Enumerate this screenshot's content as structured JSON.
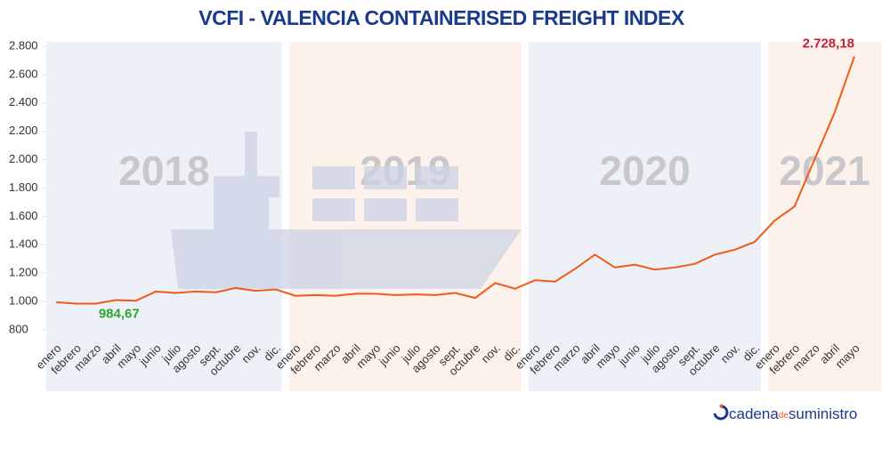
{
  "chart_data": {
    "type": "line",
    "title": "VCFI - VALENCIA CONTAINERISED FREIGHT INDEX",
    "periods": [
      "2018",
      "2019",
      "2020",
      "2021"
    ],
    "period_colors": [
      "#eef0f7",
      "#fdf2eb",
      "#eef0f7",
      "#fdf2eb"
    ],
    "categories": [
      "enero",
      "febrero",
      "marzo",
      "abril",
      "mayo",
      "junio",
      "julio",
      "agosto",
      "sept.",
      "octubre",
      "nov.",
      "dic.",
      "enero",
      "febrero",
      "marzo",
      "abril",
      "mayo",
      "junio",
      "julio",
      "agosto",
      "sept.",
      "octubre",
      "nov.",
      "dic.",
      "enero",
      "febrero",
      "marzo",
      "abril",
      "mayo",
      "junio",
      "julio",
      "agosto",
      "sept.",
      "octubre",
      "nov.",
      "dic.",
      "enero",
      "febrero",
      "marzo",
      "abril",
      "mayo"
    ],
    "values": [
      995,
      985,
      984.67,
      1010,
      1005,
      1070,
      1060,
      1070,
      1065,
      1095,
      1075,
      1085,
      1040,
      1045,
      1040,
      1055,
      1055,
      1045,
      1050,
      1045,
      1060,
      1025,
      1130,
      1090,
      1150,
      1140,
      1230,
      1330,
      1240,
      1260,
      1225,
      1240,
      1265,
      1330,
      1365,
      1420,
      1570,
      1670,
      2000,
      2330,
      2728.18
    ],
    "value_labels": [
      null,
      null,
      "984,67",
      null,
      null,
      null,
      null,
      null,
      null,
      null,
      null,
      null,
      null,
      null,
      null,
      null,
      null,
      null,
      null,
      null,
      null,
      null,
      null,
      null,
      null,
      null,
      null,
      null,
      null,
      null,
      null,
      null,
      null,
      null,
      null,
      null,
      null,
      null,
      null,
      null,
      "2.728,18"
    ],
    "color": "#f05a1a",
    "ylim": [
      800,
      2800
    ],
    "yticks": [
      800,
      {
        "value": 1000,
        "label": "1.000"
      },
      {
        "value": 1200,
        "label": "1.200"
      },
      {
        "value": 1400,
        "label": "1.400"
      },
      {
        "value": 1600,
        "label": "1.600"
      },
      {
        "value": 1800,
        "label": "1.800"
      },
      {
        "value": 2000,
        "label": "2.000"
      },
      {
        "value": 2200,
        "label": "2.200"
      },
      {
        "value": 2400,
        "label": "2.400"
      },
      {
        "value": 2600,
        "label": "2.600"
      },
      {
        "value": 2800,
        "label": "2.800"
      }
    ],
    "logo": {
      "main": "cadena",
      "small": "de",
      "end": "suministro"
    }
  }
}
